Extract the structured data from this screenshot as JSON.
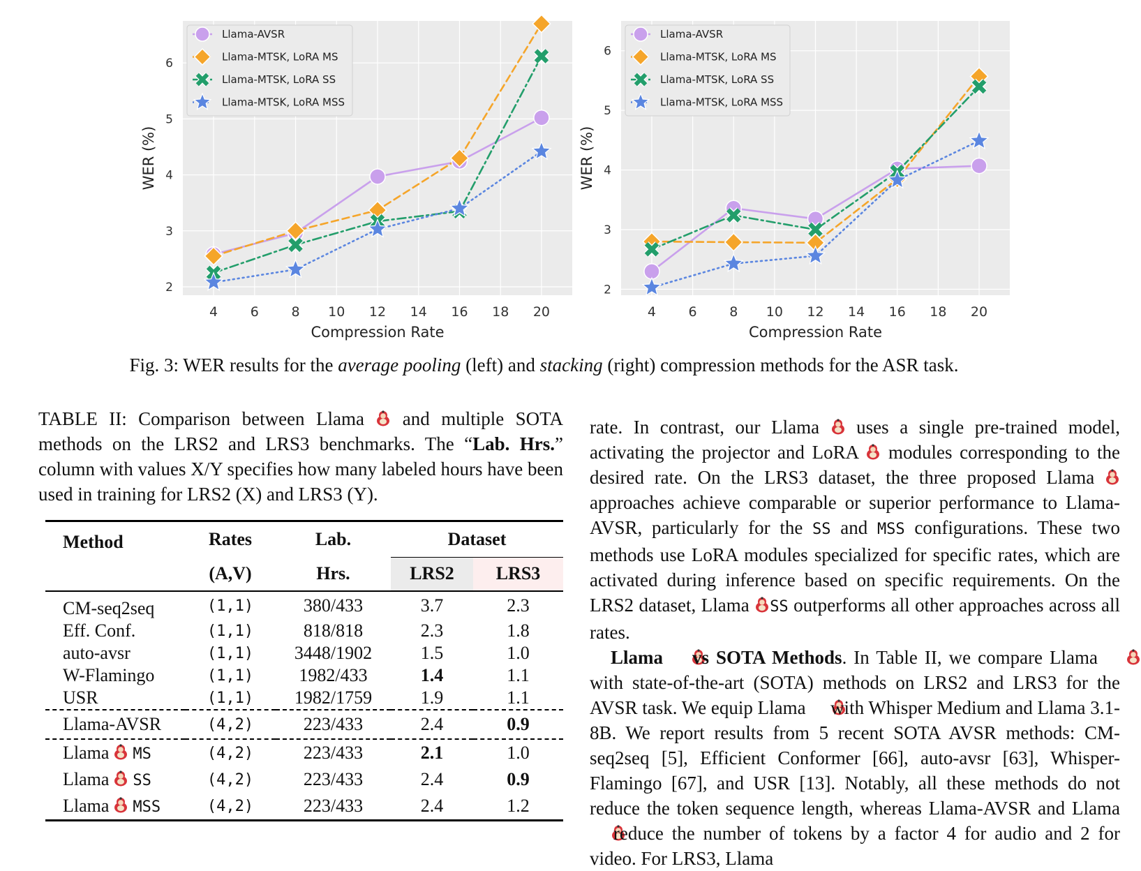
{
  "figure": {
    "caption_prefix": "Fig. 3: WER results for the ",
    "caption_em1": "average pooling",
    "caption_mid": " (left) and ",
    "caption_em2": "stacking",
    "caption_suffix": " (right) compression methods for the ASR task."
  },
  "chart_data": [
    {
      "type": "line",
      "xlabel": "Compression Rate",
      "ylabel": "WER (%)",
      "x": [
        4,
        8,
        12,
        16,
        20
      ],
      "xticks": [
        4,
        6,
        8,
        10,
        12,
        14,
        16,
        18,
        20
      ],
      "yticks": [
        2,
        3,
        4,
        5,
        6
      ],
      "xlim": [
        2.5,
        21.5
      ],
      "ylim": [
        1.85,
        6.75
      ],
      "grid": true,
      "legend_position": "top-left",
      "series": [
        {
          "name": "Llama-AVSR",
          "values": [
            2.58,
            2.96,
            3.97,
            4.24,
            5.02
          ],
          "color": "#c9a0ec",
          "marker": "circle",
          "dash": "solid"
        },
        {
          "name": "Llama-MTSK, LoRA MS",
          "values": [
            2.55,
            3.0,
            3.37,
            4.3,
            6.7
          ],
          "color": "#f5a52a",
          "marker": "diamond",
          "dash": "dashed"
        },
        {
          "name": "Llama-MTSK, LoRA SS",
          "values": [
            2.25,
            2.75,
            3.17,
            3.35,
            6.12
          ],
          "color": "#239e6b",
          "marker": "x",
          "dash": "dashdot"
        },
        {
          "name": "Llama-MTSK, LoRA MSS",
          "values": [
            2.08,
            2.31,
            3.03,
            3.4,
            4.42
          ],
          "color": "#5b86e0",
          "marker": "star",
          "dash": "dotted"
        }
      ]
    },
    {
      "type": "line",
      "xlabel": "Compression Rate",
      "ylabel": "WER (%)",
      "x": [
        4,
        8,
        12,
        16,
        20
      ],
      "xticks": [
        4,
        6,
        8,
        10,
        12,
        14,
        16,
        18,
        20
      ],
      "yticks": [
        2,
        3,
        4,
        5,
        6
      ],
      "xlim": [
        2.5,
        21.5
      ],
      "ylim": [
        1.9,
        6.5
      ],
      "grid": true,
      "legend_position": "top-left",
      "series": [
        {
          "name": "Llama-AVSR",
          "values": [
            2.3,
            3.36,
            3.18,
            4.02,
            4.07
          ],
          "color": "#c9a0ec",
          "marker": "circle",
          "dash": "solid"
        },
        {
          "name": "Llama-MTSK, LoRA MS",
          "values": [
            2.8,
            2.79,
            2.78,
            3.85,
            5.57
          ],
          "color": "#f5a52a",
          "marker": "diamond",
          "dash": "dashed"
        },
        {
          "name": "Llama-MTSK, LoRA SS",
          "values": [
            2.67,
            3.24,
            3.0,
            3.97,
            5.4
          ],
          "color": "#239e6b",
          "marker": "x",
          "dash": "dashdot"
        },
        {
          "name": "Llama-MTSK, LoRA MSS",
          "values": [
            2.03,
            2.43,
            2.56,
            3.83,
            4.49
          ],
          "color": "#5b86e0",
          "marker": "star",
          "dash": "dotted"
        }
      ]
    }
  ],
  "table_caption": {
    "prefix": "TABLE II: Comparison between Llama ",
    "mid": " and multiple SOTA methods on the LRS2 and LRS3 benchmarks. The “",
    "bold": "Lab. Hrs.",
    "suffix": "” column with values X/Y specifies how many labeled hours have been used in training for LRS2 (X) and LRS3 (Y)."
  },
  "table": {
    "headers": {
      "method": "Method",
      "rates": "Rates",
      "rates_sub": "(A,V)",
      "lab": "Lab.",
      "lab_sub": "Hrs.",
      "dataset": "Dataset",
      "lrs2": "LRS2",
      "lrs3": "LRS3"
    },
    "group1": [
      {
        "method": "CM-seq2seq",
        "rates": "(1,1)",
        "hrs": "380/433",
        "lrs2": "3.7",
        "lrs3": "2.3"
      },
      {
        "method": "Eff. Conf.",
        "rates": "(1,1)",
        "hrs": "818/818",
        "lrs2": "2.3",
        "lrs3": "1.8"
      },
      {
        "method": "auto-avsr",
        "rates": "(1,1)",
        "hrs": "3448/1902",
        "lrs2": "1.5",
        "lrs3": "1.0"
      },
      {
        "method": "W-Flamingo",
        "rates": "(1,1)",
        "hrs": "1982/433",
        "lrs2": "1.4",
        "lrs3": "1.1"
      },
      {
        "method": "USR",
        "rates": "(1,1)",
        "hrs": "1982/1759",
        "lrs2": "1.9",
        "lrs3": "1.1"
      }
    ],
    "group2": [
      {
        "method": "Llama-AVSR",
        "rates": "(4,2)",
        "hrs": "223/433",
        "lrs2": "2.4",
        "lrs3": "0.9"
      }
    ],
    "group3": [
      {
        "method": "Llama",
        "suffix": "MS",
        "rates": "(4,2)",
        "hrs": "223/433",
        "lrs2": "2.1",
        "lrs3": "1.0"
      },
      {
        "method": "Llama",
        "suffix": "SS",
        "rates": "(4,2)",
        "hrs": "223/433",
        "lrs2": "2.4",
        "lrs3": "0.9"
      },
      {
        "method": "Llama",
        "suffix": "MSS",
        "rates": "(4,2)",
        "hrs": "223/433",
        "lrs2": "2.4",
        "lrs3": "1.2"
      }
    ]
  },
  "body": {
    "p1": [
      "rate. In contrast, our Llama ",
      " uses a single pre-trained model, activating the projector and LoRA ",
      " modules corresponding to the desired rate. On the LRS3 dataset, the three proposed Llama ",
      " approaches achieve comparable or superior performance to Llama-AVSR, particularly for the ",
      "SS",
      " and ",
      "MSS",
      " configurations. These two methods use LoRA modules specialized for specific rates, which are activated during inference based on specific requirements. On the LRS2 dataset, Llama ",
      "SS",
      " outperforms all other approaches across all rates."
    ],
    "p2_bold1": "Llama ",
    "p2_bold2": " vs SOTA Methods",
    "p2": [
      ". In Table II, we compare Llama ",
      " with state-of-the-art (SOTA) methods on LRS2 and LRS3 for the AVSR task. We equip Llama ",
      " with Whisper Medium and Llama 3.1-8B. We report results from 5 recent SOTA AVSR methods: CM-seq2seq [5], Efficient Conformer [66], auto-avsr [63], Whisper-Flamingo [67], and USR [13]. Notably, all these methods do not reduce the token sequence length, whereas Llama-AVSR and Llama ",
      " reduce the number of tokens by a factor 4 for audio and 2 for video. For LRS3, Llama"
    ]
  }
}
